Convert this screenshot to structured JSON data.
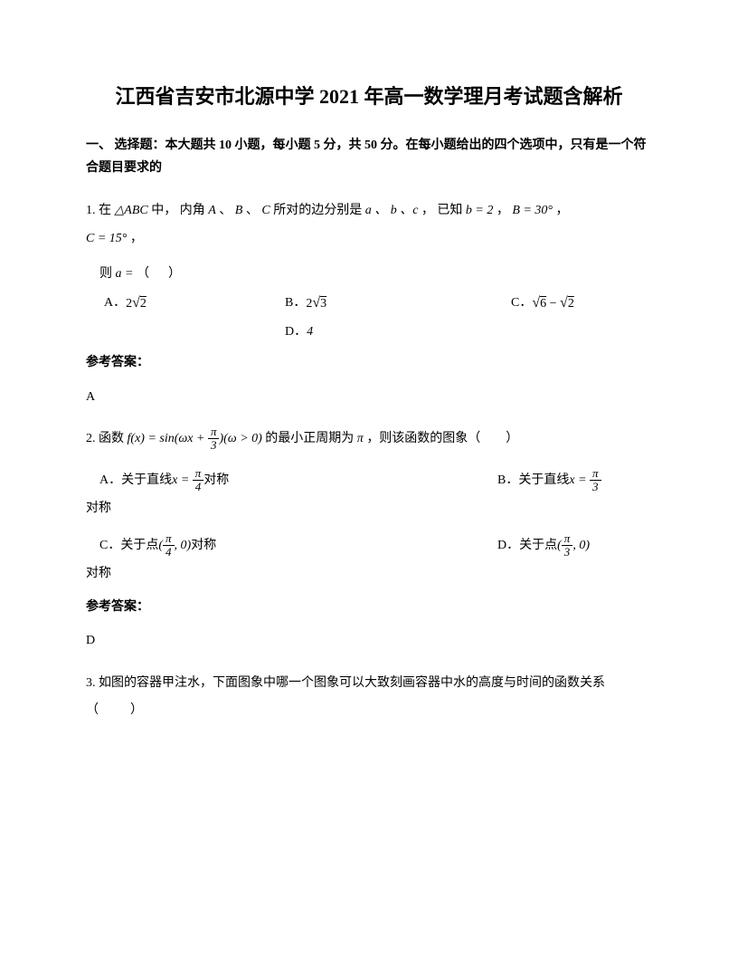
{
  "title": "江西省吉安市北源中学 2021 年高一数学理月考试题含解析",
  "section1": {
    "header": "一、 选择题：本大题共 10 小题，每小题 5 分，共 50 分。在每小题给出的四个选项中，只有是一个符合题目要求的"
  },
  "q1": {
    "prefix": "1. 在",
    "triangle": "△ABC",
    "text1": " 中，  内角",
    "A": "A",
    "sep1": " 、",
    "B": "B",
    "sep2": " 、",
    "C": "C",
    "text2": " 所对的边分别是",
    "abc": "a 、 b 、c",
    "text3": "，  已知",
    "cond1": "b = 2",
    "comma1": "，",
    "cond2": "B = 30°",
    "comma2": "，",
    "cond3": "C = 15°",
    "comma3": "，",
    "then": "则",
    "aeq": "a =",
    "paren": "（      ）",
    "optA_label": "A．",
    "optA_val": "2√2",
    "optB_label": "B．",
    "optB_val": "2√3",
    "optC_label": "C．",
    "optC_val": "√6 − √2",
    "optD_label": "D．",
    "optD_val": "4",
    "answer_label": "参考答案：",
    "answer": "A"
  },
  "q2": {
    "prefix": "2. 函数",
    "func": "f(x) = sin(ωx + π/3)(ω > 0)",
    "text1": " 的最小正周期为",
    "period": "π",
    "text2": "，则该函数的图象（        ）",
    "optA_label": "A．关于直线",
    "optA_val": "x = π/4",
    "optA_suffix": " 对称",
    "optB_label": "B．关于直线",
    "optB_val": "x = π/3",
    "optB_suffix": "",
    "continuation1": "对称",
    "optC_label": "C．关于点",
    "optC_val": "(π/4, 0)",
    "optC_suffix": " 对称",
    "optD_label": "D．关于点",
    "optD_val": "(π/3, 0)",
    "optD_suffix": "",
    "continuation2": "对称",
    "answer_label": "参考答案：",
    "answer": "D"
  },
  "q3": {
    "text": "3. 如图的容器甲注水，下面图象中哪一个图象可以大致刻画容器中水的高度与时间的函数关系（          ）"
  },
  "colors": {
    "text": "#000000",
    "background": "#ffffff"
  }
}
